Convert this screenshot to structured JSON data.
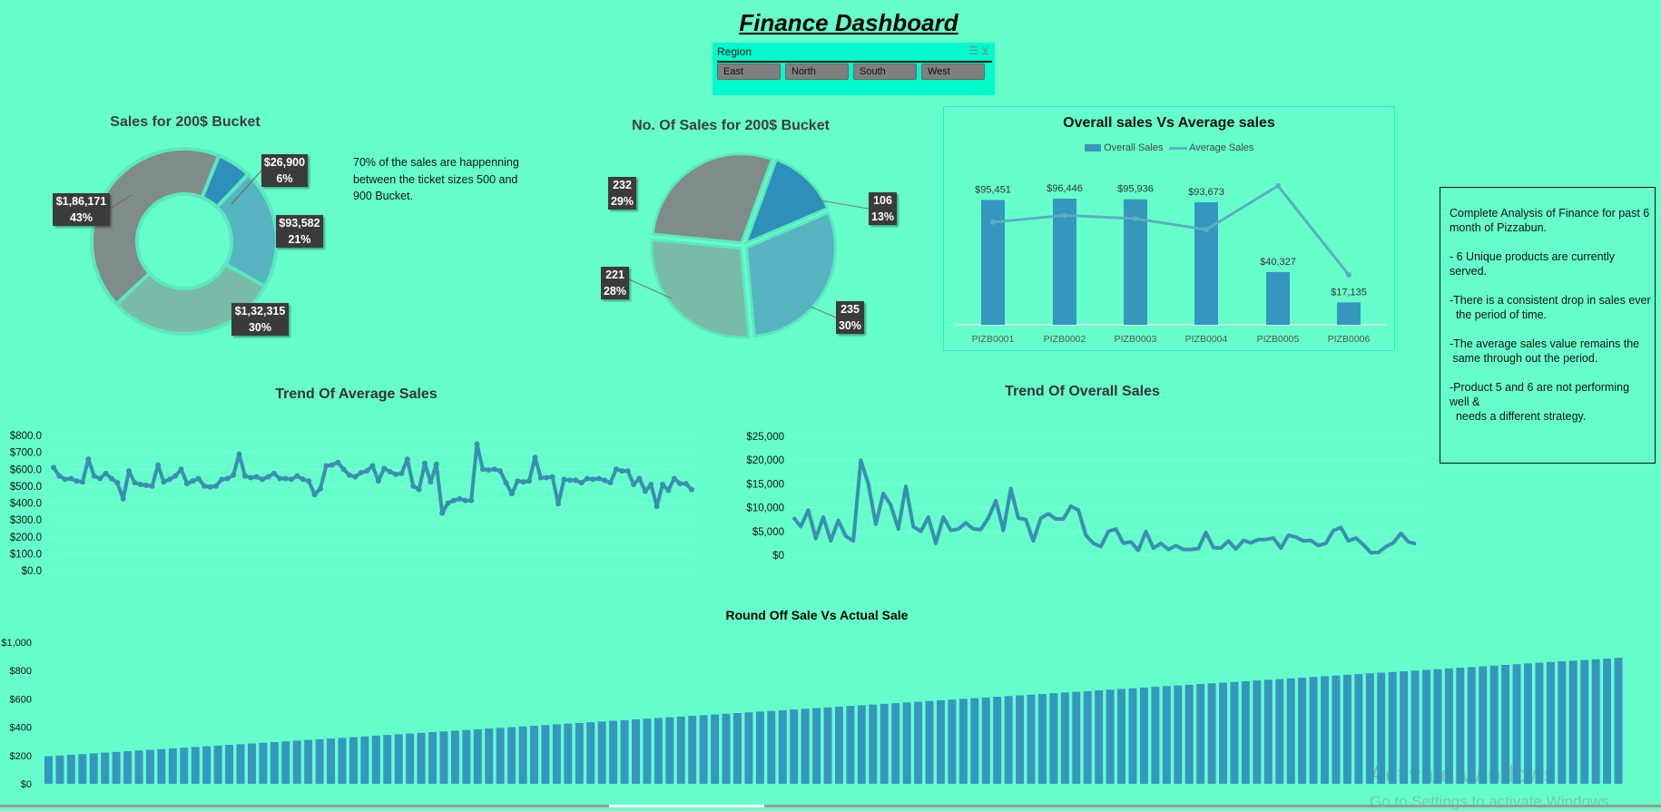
{
  "title": "Finance Dashboard",
  "slicer": {
    "header": "Region",
    "buttons": [
      "East",
      "North",
      "South",
      "West"
    ]
  },
  "colors": {
    "background": "#66FFCC",
    "gray": "#7F8C8A",
    "blue": "#2E8FBB",
    "lightblue": "#56B4C0",
    "sage": "#78BBA8",
    "line": "#3A8FB0",
    "bar": "#3596BE"
  },
  "donut": {
    "title": "Sales for 200$ Bucket",
    "note": "70% of the sales are happenning between the ticket sizes 500 and 900 Bucket.",
    "slices": [
      {
        "value": "$26,900",
        "pct": "6%",
        "p": 6,
        "color": "#2E8FBB"
      },
      {
        "value": "$93,582",
        "pct": "21%",
        "p": 21,
        "color": "#56B4C0"
      },
      {
        "value": "$1,32,315",
        "pct": "30%",
        "p": 30,
        "color": "#78BBA8"
      },
      {
        "value": "$1,86,171",
        "pct": "43%",
        "p": 43,
        "color": "#7F8C8A"
      }
    ]
  },
  "pie": {
    "title": "No. Of Sales for 200$ Bucket",
    "slices": [
      {
        "value": "106",
        "pct": "13%",
        "p": 13,
        "color": "#2E8FBB"
      },
      {
        "value": "235",
        "pct": "30%",
        "p": 30,
        "color": "#56B4C0"
      },
      {
        "value": "221",
        "pct": "28%",
        "p": 28,
        "color": "#78BBA8"
      },
      {
        "value": "232",
        "pct": "29%",
        "p": 29,
        "color": "#7F8C8A"
      }
    ]
  },
  "chart_data": [
    {
      "type": "bar",
      "title": "Overall sales Vs Average sales",
      "legend": [
        "Overall Sales",
        "Average Sales"
      ],
      "categories": [
        "PIZB0001",
        "PIZB0002",
        "PIZB0003",
        "PIZB0004",
        "PIZB0005",
        "PIZB0006"
      ],
      "series": [
        {
          "name": "Overall Sales",
          "type": "bar",
          "values": [
            95451,
            96446,
            95936,
            93673,
            40327,
            17135
          ],
          "labels": [
            "$95,451",
            "$96,446",
            "$95,936",
            "$93,673",
            "$40,327",
            "$17,135"
          ]
        },
        {
          "name": "Average Sales",
          "type": "line",
          "values": [
            523,
            558,
            541,
            485,
            708,
            254
          ]
        }
      ],
      "ylim": [
        0,
        120000
      ],
      "y2lim": [
        0,
        800
      ],
      "legend_position": "top"
    },
    {
      "type": "line",
      "title": "Trend Of Average Sales",
      "yticks": [
        "$0.0",
        "$100.0",
        "$200.0",
        "$300.0",
        "$400.0",
        "$500.0",
        "$600.0",
        "$700.0",
        "$800.0"
      ],
      "ylim": [
        0,
        800
      ],
      "values": [
        610,
        560,
        540,
        545,
        530,
        525,
        660,
        560,
        545,
        575,
        545,
        520,
        425,
        590,
        520,
        510,
        505,
        500,
        625,
        525,
        540,
        560,
        600,
        515,
        530,
        545,
        500,
        495,
        500,
        540,
        545,
        565,
        690,
        560,
        550,
        555,
        540,
        555,
        575,
        545,
        545,
        540,
        560,
        540,
        530,
        450,
        485,
        620,
        625,
        640,
        600,
        565,
        555,
        580,
        590,
        620,
        530,
        605,
        585,
        570,
        575,
        660,
        500,
        480,
        635,
        525,
        630,
        340,
        400,
        415,
        425,
        415,
        415,
        750,
        600,
        595,
        600,
        590,
        520,
        455,
        530,
        525,
        530,
        670,
        550,
        550,
        555,
        395,
        540,
        535,
        535,
        520,
        545,
        540,
        545,
        535,
        520,
        600,
        590,
        590,
        510,
        545,
        470,
        510,
        380,
        510,
        475,
        545,
        515,
        515,
        480
      ]
    },
    {
      "type": "line",
      "title": "Trend Of Overall Sales",
      "yticks": [
        "$0",
        "$5,000",
        "$10,000",
        "$15,000",
        "$20,000",
        "$25,000"
      ],
      "ylim": [
        0,
        25000
      ],
      "values": [
        8000,
        6000,
        9500,
        3500,
        8000,
        3000,
        7300,
        4000,
        3000,
        20000,
        15000,
        6500,
        13000,
        10500,
        5500,
        14500,
        6000,
        5000,
        8000,
        2500,
        8000,
        5200,
        5500,
        6800,
        5500,
        5400,
        7800,
        11500,
        5200,
        14000,
        7800,
        7500,
        3000,
        7800,
        8700,
        7600,
        7600,
        10300,
        9500,
        4200,
        2500,
        1800,
        5000,
        5500,
        2500,
        2800,
        1000,
        5000,
        1500,
        2500,
        1200,
        2000,
        1200,
        1200,
        1400,
        4800,
        1600,
        1500,
        3000,
        1300,
        3100,
        2600,
        3300,
        3300,
        3600,
        1500,
        4200,
        3800,
        3000,
        3100,
        2000,
        2500,
        5200,
        5800,
        3000,
        3600,
        2200,
        500,
        600,
        1800,
        2600,
        4600,
        2800,
        2400
      ]
    },
    {
      "type": "bar",
      "title": "Round Off Sale Vs Actual Sale",
      "yticks": [
        "$0",
        "$200",
        "$400",
        "$600",
        "$800",
        "$1,000"
      ],
      "ylim": [
        0,
        1000
      ],
      "values": [
        195,
        200,
        205,
        210,
        215,
        220,
        225,
        230,
        235,
        240,
        245,
        250,
        255,
        260,
        265,
        270,
        275,
        280,
        285,
        290,
        295,
        300,
        305,
        310,
        315,
        320,
        325,
        330,
        335,
        340,
        345,
        350,
        355,
        360,
        365,
        370,
        375,
        380,
        385,
        390,
        395,
        400,
        405,
        410,
        415,
        420,
        425,
        430,
        435,
        440,
        445,
        450,
        455,
        460,
        465,
        470,
        475,
        480,
        485,
        490,
        495,
        500,
        505,
        510,
        515,
        520,
        525,
        530,
        535,
        540,
        545,
        550,
        555,
        560,
        565,
        570,
        575,
        580,
        585,
        590,
        595,
        600,
        605,
        610,
        615,
        620,
        625,
        630,
        635,
        640,
        645,
        650,
        655,
        660,
        665,
        670,
        675,
        680,
        685,
        690,
        695,
        700,
        705,
        710,
        715,
        720,
        725,
        730,
        735,
        740,
        745,
        750,
        755,
        760,
        765,
        770,
        775,
        780,
        785,
        790,
        795,
        800,
        805,
        810,
        815,
        820,
        825,
        830,
        835,
        840,
        845,
        850,
        855,
        860,
        865,
        870,
        875,
        880,
        885,
        890
      ]
    }
  ],
  "analysis": [
    "Complete Analysis of Finance for past 6 month of Pizzabun.",
    "- 6 Unique products are currently served.",
    "-There is a consistent drop in sales ever\n  the period of time.",
    "-The average sales value remains the\n same through out the period.",
    "-Product 5 and 6 are not performing well &\n  needs a different strategy."
  ],
  "watermark": {
    "line1": "Activate Windows",
    "line2": "Go to Settings to activate Windows."
  }
}
